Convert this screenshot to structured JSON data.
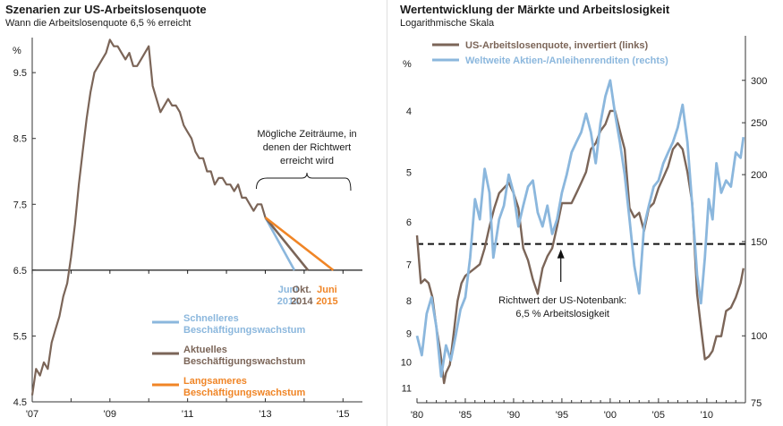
{
  "colors": {
    "actual": "#7b6558",
    "faster": "#8bb7dd",
    "slower": "#f08526",
    "dark": "#1a1a1a",
    "axis": "#333333"
  },
  "chart_data": [
    {
      "type": "line",
      "title": "Szenarien zur US-Arbeitslosenquote",
      "subtitle": "Wann die Arbeitslosenquote 6,5 % erreicht",
      "ylabel": "%",
      "xlim": [
        2007,
        2015.5
      ],
      "ylim": [
        4.5,
        10.1
      ],
      "y_ticks": [
        {
          "v": 4.5,
          "label": "4.5"
        },
        {
          "v": 5.5,
          "label": "5.5"
        },
        {
          "v": 6.5,
          "label": "6.5"
        },
        {
          "v": 7.5,
          "label": "7.5"
        },
        {
          "v": 8.5,
          "label": "8.5"
        },
        {
          "v": 9.5,
          "label": "9.5"
        }
      ],
      "x_ticks": [
        {
          "v": 2007,
          "label": "'07"
        },
        {
          "v": 2009,
          "label": "'09"
        },
        {
          "v": 2011,
          "label": "'11"
        },
        {
          "v": 2013,
          "label": "'13"
        },
        {
          "v": 2015,
          "label": "'15"
        }
      ],
      "actual": {
        "x": [
          2007.0,
          2007.1,
          2007.2,
          2007.3,
          2007.4,
          2007.5,
          2007.6,
          2007.7,
          2007.8,
          2007.9,
          2008.0,
          2008.1,
          2008.2,
          2008.3,
          2008.4,
          2008.5,
          2008.6,
          2008.7,
          2008.8,
          2008.9,
          2009.0,
          2009.1,
          2009.2,
          2009.3,
          2009.4,
          2009.5,
          2009.6,
          2009.7,
          2009.8,
          2009.9,
          2010.0,
          2010.1,
          2010.2,
          2010.3,
          2010.4,
          2010.5,
          2010.6,
          2010.7,
          2010.8,
          2010.9,
          2011.0,
          2011.1,
          2011.2,
          2011.3,
          2011.4,
          2011.5,
          2011.6,
          2011.7,
          2011.8,
          2011.9,
          2012.0,
          2012.1,
          2012.2,
          2012.3,
          2012.4,
          2012.5,
          2012.6,
          2012.7,
          2012.8,
          2012.9,
          2013.0
        ],
        "y": [
          4.6,
          5.0,
          4.9,
          5.1,
          5.0,
          5.4,
          5.6,
          5.8,
          6.1,
          6.3,
          6.7,
          7.2,
          7.8,
          8.3,
          8.8,
          9.2,
          9.5,
          9.6,
          9.7,
          9.8,
          10.0,
          9.9,
          9.9,
          9.8,
          9.7,
          9.8,
          9.6,
          9.6,
          9.7,
          9.8,
          9.9,
          9.3,
          9.1,
          8.9,
          9.0,
          9.1,
          9.0,
          9.0,
          8.9,
          8.7,
          8.6,
          8.5,
          8.3,
          8.2,
          8.2,
          8.0,
          8.0,
          7.8,
          7.9,
          7.9,
          7.8,
          7.8,
          7.7,
          7.8,
          7.6,
          7.6,
          7.5,
          7.4,
          7.5,
          7.5,
          7.3
        ]
      },
      "scenarios": [
        {
          "name": "Schnelleres Beschäftigungswachstum",
          "line1": "Schnelleres",
          "line2": "Beschäftigungswachstum",
          "color_key": "faster",
          "x": [
            2013.0,
            2013.75
          ],
          "y": [
            7.3,
            6.5
          ],
          "end_label1": "Juni",
          "end_label2": "2014"
        },
        {
          "name": "Aktuelles Beschäftigungswachstum",
          "line1": "Aktuelles",
          "line2": "Beschäftigungswachstum",
          "color_key": "actual",
          "x": [
            2013.0,
            2014.1
          ],
          "y": [
            7.3,
            6.5
          ],
          "end_label1": "Okt.",
          "end_label2": "2014"
        },
        {
          "name": "Langsameres Beschäftigungswachstum",
          "line1": "Langsameres",
          "line2": "Beschäftigungswachstum",
          "color_key": "slower",
          "x": [
            2013.0,
            2014.75
          ],
          "y": [
            7.3,
            6.5
          ],
          "end_label1": "Juni",
          "end_label2": "2015"
        }
      ],
      "reference_line": 6.5,
      "annotation": {
        "lines": [
          "Mögliche Zeiträume, in",
          "denen der Richtwert",
          "erreicht wird"
        ],
        "x_from": 2013.0,
        "x_to": 2015.2
      }
    },
    {
      "type": "line",
      "title": "Wertentwicklung der Märkte und Arbeitslosigkeit",
      "subtitle": "Logarithmische Skala",
      "left_label": "%",
      "xlim": [
        1980,
        2014
      ],
      "left_ylim": [
        3.3,
        11.6
      ],
      "left_ticks": [
        {
          "v": 4,
          "label": "4"
        },
        {
          "v": 5,
          "label": "5"
        },
        {
          "v": 6,
          "label": "6"
        },
        {
          "v": 7,
          "label": "7"
        },
        {
          "v": 8,
          "label": "8"
        },
        {
          "v": 9,
          "label": "9"
        },
        {
          "v": 10,
          "label": "10"
        },
        {
          "v": 11,
          "label": "11"
        }
      ],
      "right_ylim": [
        75,
        330
      ],
      "right_ticks": [
        {
          "v": 75,
          "label": "75"
        },
        {
          "v": 100,
          "label": "100"
        },
        {
          "v": 150,
          "label": "150"
        },
        {
          "v": 200,
          "label": "200"
        },
        {
          "v": 250,
          "label": "250"
        },
        {
          "v": 300,
          "label": "300"
        }
      ],
      "x_ticks": [
        {
          "v": 1980,
          "label": "'80"
        },
        {
          "v": 1985,
          "label": "'85"
        },
        {
          "v": 1990,
          "label": "'90"
        },
        {
          "v": 1995,
          "label": "'95"
        },
        {
          "v": 2000,
          "label": "'00"
        },
        {
          "v": 2005,
          "label": "'05"
        },
        {
          "v": 2010,
          "label": "'10"
        }
      ],
      "series": [
        {
          "name": "US-Arbeitslosenquote, invertiert (links)",
          "axis": "left",
          "color_key": "actual",
          "x": [
            1980.0,
            1980.4,
            1980.8,
            1981.2,
            1981.6,
            1982.0,
            1982.4,
            1982.8,
            1983.0,
            1983.4,
            1983.8,
            1984.2,
            1984.6,
            1985.0,
            1985.5,
            1986.0,
            1986.5,
            1987.0,
            1987.5,
            1988.0,
            1988.5,
            1989.0,
            1989.5,
            1990.0,
            1990.5,
            1991.0,
            1991.5,
            1992.0,
            1992.5,
            1993.0,
            1993.5,
            1994.0,
            1994.5,
            1995.0,
            1995.5,
            1996.0,
            1996.5,
            1997.0,
            1997.5,
            1998.0,
            1998.5,
            1999.0,
            1999.5,
            2000.0,
            2000.5,
            2001.0,
            2001.5,
            2002.0,
            2002.5,
            2003.0,
            2003.5,
            2004.0,
            2004.5,
            2005.0,
            2005.5,
            2006.0,
            2006.5,
            2007.0,
            2007.5,
            2008.0,
            2008.5,
            2009.0,
            2009.4,
            2009.8,
            2010.2,
            2010.6,
            2011.0,
            2011.5,
            2012.0,
            2012.5,
            2013.0,
            2013.5,
            2013.8
          ],
          "y": [
            6.3,
            7.5,
            7.4,
            7.5,
            7.9,
            8.8,
            9.6,
            10.8,
            10.4,
            10.1,
            9.0,
            8.0,
            7.5,
            7.3,
            7.2,
            7.1,
            7.0,
            6.6,
            6.1,
            5.7,
            5.4,
            5.3,
            5.2,
            5.4,
            5.7,
            6.6,
            6.9,
            7.4,
            7.8,
            7.1,
            6.8,
            6.6,
            6.1,
            5.6,
            5.6,
            5.6,
            5.4,
            5.2,
            5.0,
            4.6,
            4.5,
            4.3,
            4.2,
            4.0,
            4.0,
            4.3,
            4.6,
            5.7,
            5.9,
            5.8,
            6.2,
            5.7,
            5.6,
            5.3,
            5.1,
            4.9,
            4.6,
            4.5,
            4.6,
            5.0,
            5.6,
            7.8,
            8.8,
            9.9,
            9.8,
            9.6,
            9.1,
            9.1,
            8.3,
            8.2,
            7.9,
            7.5,
            7.1
          ]
        },
        {
          "name": "Weltweite Aktien-/Anleihenrenditen (rechts)",
          "axis": "right",
          "color_key": "faster",
          "x": [
            1980.0,
            1980.5,
            1981.0,
            1981.5,
            1982.0,
            1982.5,
            1983.0,
            1983.5,
            1984.0,
            1984.5,
            1985.0,
            1985.5,
            1986.0,
            1986.5,
            1987.0,
            1987.5,
            1987.9,
            1988.5,
            1989.0,
            1989.5,
            1990.0,
            1990.5,
            1991.0,
            1991.5,
            1992.0,
            1992.5,
            1993.0,
            1993.5,
            1994.0,
            1994.5,
            1995.0,
            1995.5,
            1996.0,
            1996.5,
            1997.0,
            1997.5,
            1998.0,
            1998.5,
            1999.0,
            1999.5,
            2000.0,
            2000.5,
            2001.0,
            2001.5,
            2002.0,
            2002.5,
            2003.0,
            2003.5,
            2004.0,
            2004.5,
            2005.0,
            2005.5,
            2006.0,
            2006.5,
            2007.0,
            2007.5,
            2008.0,
            2008.5,
            2009.0,
            2009.4,
            2009.8,
            2010.2,
            2010.6,
            2011.0,
            2011.5,
            2012.0,
            2012.5,
            2013.0,
            2013.5,
            2013.8
          ],
          "y": [
            100,
            92,
            110,
            118,
            104,
            84,
            96,
            90,
            100,
            112,
            118,
            140,
            180,
            165,
            205,
            185,
            140,
            165,
            175,
            200,
            185,
            160,
            175,
            190,
            195,
            170,
            160,
            175,
            155,
            165,
            185,
            200,
            220,
            230,
            240,
            260,
            240,
            210,
            250,
            280,
            300,
            260,
            230,
            200,
            165,
            135,
            120,
            160,
            175,
            190,
            195,
            210,
            220,
            230,
            245,
            270,
            230,
            175,
            130,
            115,
            140,
            180,
            165,
            210,
            185,
            195,
            190,
            220,
            215,
            235
          ]
        }
      ],
      "reference_line_left": 6.5,
      "annotation": {
        "line1": "Richtwert der US-Notenbank:",
        "line2": "6,5 % Arbeitslosigkeit",
        "x": 1996.0
      }
    }
  ]
}
